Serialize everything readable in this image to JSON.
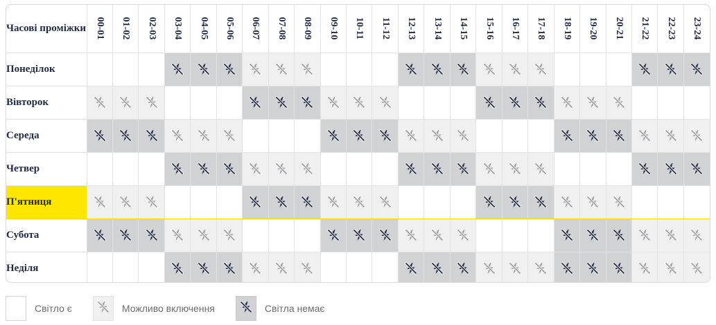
{
  "schedule": {
    "corner_label": "Часові проміжки",
    "hours": [
      "00-01",
      "01-02",
      "02-03",
      "03-04",
      "04-05",
      "05-06",
      "06-07",
      "07-08",
      "08-09",
      "09-10",
      "10-11",
      "11-12",
      "12-13",
      "13-14",
      "14-15",
      "15-16",
      "16-17",
      "17-18",
      "18-19",
      "19-20",
      "20-21",
      "21-22",
      "22-23",
      "23-24"
    ],
    "today": "П'ятниця",
    "days": [
      {
        "label": "Понеділок",
        "slots": [
          "yes",
          "yes",
          "yes",
          "no",
          "no",
          "no",
          "maybe",
          "maybe",
          "maybe",
          "yes",
          "yes",
          "yes",
          "no",
          "no",
          "no",
          "maybe",
          "maybe",
          "maybe",
          "yes",
          "yes",
          "yes",
          "no",
          "no",
          "no"
        ]
      },
      {
        "label": "Вівторок",
        "slots": [
          "maybe",
          "maybe",
          "maybe",
          "yes",
          "yes",
          "yes",
          "no",
          "no",
          "no",
          "maybe",
          "maybe",
          "maybe",
          "yes",
          "yes",
          "yes",
          "no",
          "no",
          "no",
          "maybe",
          "maybe",
          "maybe",
          "yes",
          "yes",
          "yes"
        ]
      },
      {
        "label": "Середа",
        "slots": [
          "no",
          "no",
          "no",
          "maybe",
          "maybe",
          "maybe",
          "yes",
          "yes",
          "yes",
          "no",
          "no",
          "no",
          "maybe",
          "maybe",
          "maybe",
          "yes",
          "yes",
          "yes",
          "no",
          "no",
          "no",
          "maybe",
          "maybe",
          "maybe"
        ]
      },
      {
        "label": "Четвер",
        "slots": [
          "yes",
          "yes",
          "yes",
          "no",
          "no",
          "no",
          "maybe",
          "maybe",
          "maybe",
          "yes",
          "yes",
          "yes",
          "no",
          "no",
          "no",
          "maybe",
          "maybe",
          "maybe",
          "yes",
          "yes",
          "yes",
          "no",
          "no",
          "no"
        ]
      },
      {
        "label": "П'ятниця",
        "slots": [
          "maybe",
          "maybe",
          "maybe",
          "yes",
          "yes",
          "yes",
          "no",
          "no",
          "no",
          "maybe",
          "maybe",
          "maybe",
          "yes",
          "yes",
          "yes",
          "no",
          "no",
          "no",
          "maybe",
          "maybe",
          "maybe",
          "yes",
          "yes",
          "yes"
        ]
      },
      {
        "label": "Субота",
        "slots": [
          "no",
          "no",
          "no",
          "maybe",
          "maybe",
          "maybe",
          "yes",
          "yes",
          "yes",
          "no",
          "no",
          "no",
          "maybe",
          "maybe",
          "maybe",
          "yes",
          "yes",
          "yes",
          "no",
          "no",
          "no",
          "maybe",
          "maybe",
          "maybe"
        ]
      },
      {
        "label": "Неділя",
        "slots": [
          "yes",
          "yes",
          "yes",
          "no",
          "no",
          "no",
          "maybe",
          "maybe",
          "maybe",
          "yes",
          "yes",
          "yes",
          "no",
          "no",
          "no",
          "maybe",
          "maybe",
          "maybe",
          "no",
          "no",
          "no",
          "maybe",
          "maybe",
          "maybe"
        ]
      }
    ]
  },
  "legend": {
    "yes_label": "Світло є",
    "maybe_label": "Можливо включення",
    "no_label": "Світла немає"
  },
  "colors": {
    "today_highlight": "#ffe600",
    "no_power_bg": "#d0d2d4",
    "maybe_bg": "#f0f0f0",
    "no_power_icon": "#1f2a44",
    "maybe_icon": "#9b9ea3"
  },
  "icons": {
    "yes": "none",
    "maybe": "power-off-gray-icon",
    "no": "power-off-dark-icon"
  }
}
